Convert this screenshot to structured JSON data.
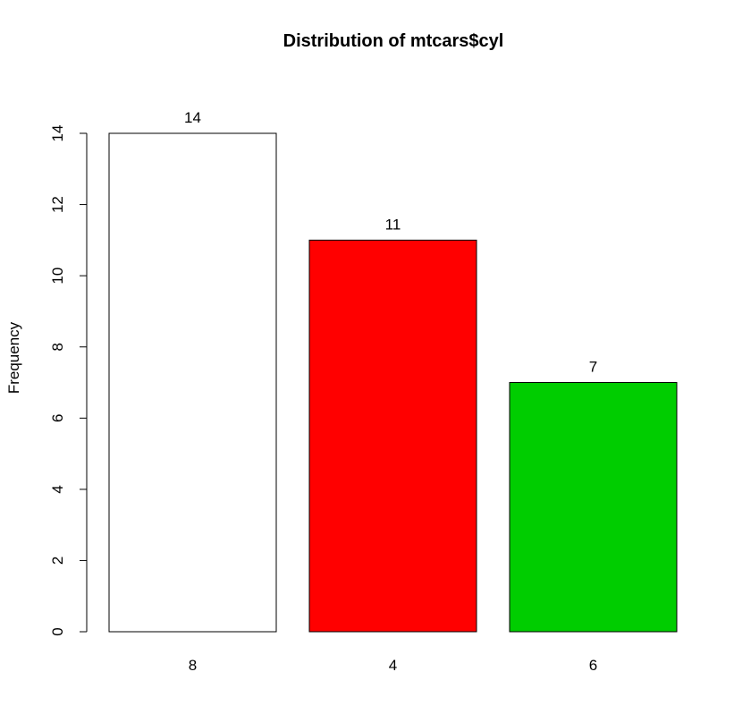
{
  "chart_data": {
    "type": "bar",
    "title": "Distribution of mtcars$cyl",
    "xlabel": "",
    "ylabel": "Frequency",
    "categories": [
      "8",
      "4",
      "6"
    ],
    "values": [
      14,
      11,
      7
    ],
    "data_labels": [
      "14",
      "11",
      "7"
    ],
    "bar_colors": [
      "#ffffff",
      "#ff0000",
      "#00cd00"
    ],
    "bar_border_color": "#000000",
    "ylim": [
      0,
      14
    ],
    "y_ticks": [
      0,
      2,
      4,
      6,
      8,
      10,
      12,
      14
    ],
    "y_tick_labels": [
      "0",
      "2",
      "4",
      "6",
      "8",
      "10",
      "12",
      "14"
    ],
    "grid": false,
    "legend": "none"
  }
}
